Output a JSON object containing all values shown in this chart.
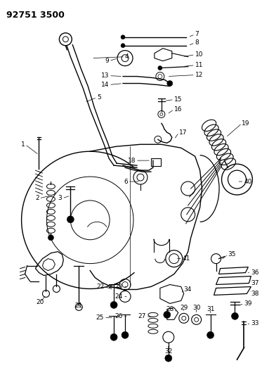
{
  "title": "92751 3500",
  "bg_color": "#ffffff",
  "line_color": "#000000",
  "title_fontsize": 9,
  "label_fontsize": 6.5,
  "fig_width": 3.83,
  "fig_height": 5.33,
  "dpi": 100
}
